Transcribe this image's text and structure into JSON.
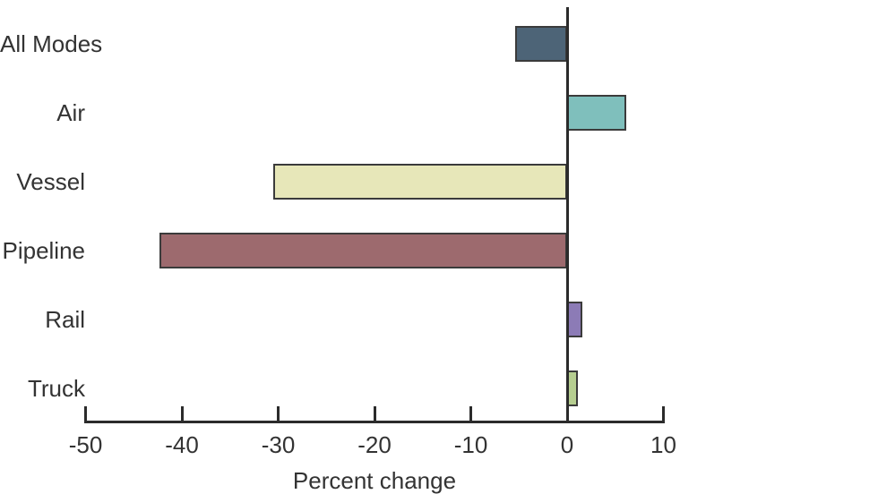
{
  "chart_data": {
    "type": "bar",
    "orientation": "horizontal",
    "title": "",
    "xlabel": "Percent change",
    "ylabel": "",
    "categories": [
      "All Modes",
      "Air",
      "Vessel",
      "Pipeline",
      "Rail",
      "Truck"
    ],
    "values": [
      -5.4,
      6.1,
      -30.5,
      -42.3,
      1.6,
      1.1
    ],
    "xlim": [
      -50,
      10
    ],
    "xticks": [
      -50,
      -40,
      -30,
      -20,
      -10,
      0,
      10
    ],
    "grid": false,
    "legend": false,
    "bar_colors": [
      "#4d6477",
      "#7fbfbc",
      "#e7e7b9",
      "#9d6a6e",
      "#8c7bb6",
      "#b6ce90"
    ],
    "bar_border_color": "#3b3b3b",
    "axis_color": "#2b2b2b",
    "text_color": "#333333"
  }
}
